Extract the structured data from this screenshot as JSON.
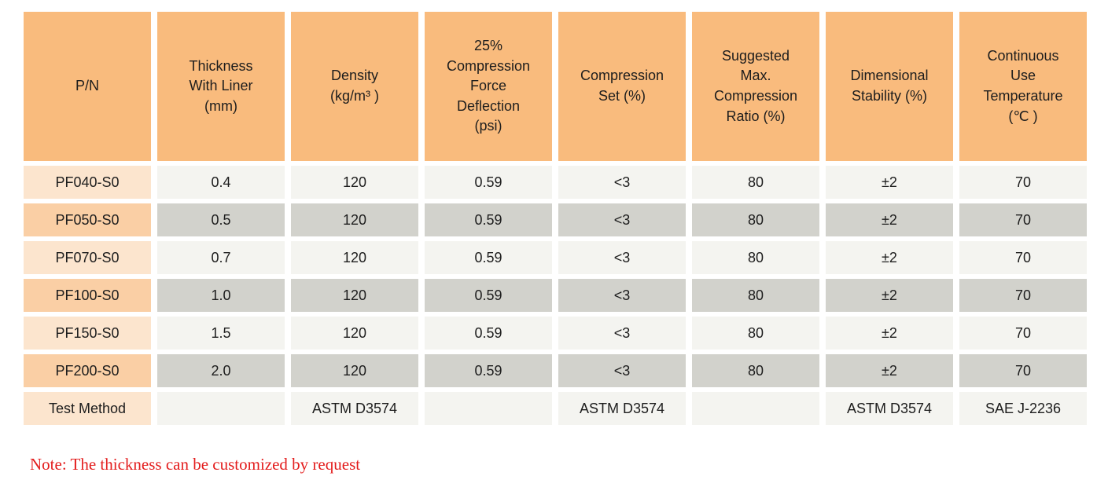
{
  "colors": {
    "header-bg": "#F9BB7D",
    "pn-light": "#FCE5CE",
    "pn-dark": "#FACFA5",
    "cell-light": "#F4F4F0",
    "cell-dark": "#D2D2CC",
    "note-red": "#E31C1C",
    "text": "#1D1D1D"
  },
  "table": {
    "columns": [
      "P/N",
      "Thickness\nWith Liner\n(mm)",
      "Density\n(kg/m³ )",
      "25%\nCompression\nForce\nDeflection\n(psi)",
      "Compression\nSet (%)",
      "Suggested\nMax.\nCompression\nRatio (%)",
      "Dimensional\nStability (%)",
      "Continuous\nUse\nTemperature\n(℃ )"
    ],
    "rows": [
      {
        "cells": [
          "PF040-S0",
          "0.4",
          "120",
          "0.59",
          "<3",
          "80",
          "±2",
          "70"
        ]
      },
      {
        "cells": [
          "PF050-S0",
          "0.5",
          "120",
          "0.59",
          "<3",
          "80",
          "±2",
          "70"
        ]
      },
      {
        "cells": [
          "PF070-S0",
          "0.7",
          "120",
          "0.59",
          "<3",
          "80",
          "±2",
          "70"
        ]
      },
      {
        "cells": [
          "PF100-S0",
          "1.0",
          "120",
          "0.59",
          "<3",
          "80",
          "±2",
          "70"
        ]
      },
      {
        "cells": [
          "PF150-S0",
          "1.5",
          "120",
          "0.59",
          "<3",
          "80",
          "±2",
          "70"
        ]
      },
      {
        "cells": [
          "PF200-S0",
          "2.0",
          "120",
          "0.59",
          "<3",
          "80",
          "±2",
          "70"
        ]
      },
      {
        "cells": [
          "Test Method",
          "",
          "ASTM D3574",
          "",
          "ASTM D3574",
          "",
          "ASTM D3574",
          "SAE J-2236"
        ]
      }
    ]
  },
  "note": {
    "text": "Note: The thickness can be customized by request"
  }
}
